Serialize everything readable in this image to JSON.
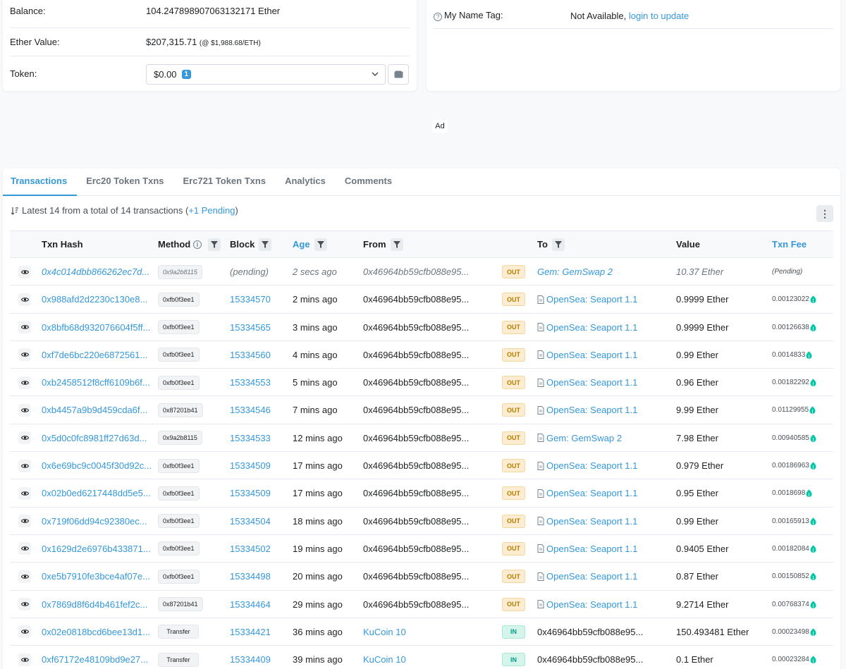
{
  "overview": {
    "balance_label": "Balance:",
    "balance_value": "104.247898907063132171 Ether",
    "ether_value_label": "Ether Value:",
    "ether_value": "$207,315.71",
    "ether_price": "(@ $1,988.68/ETH)",
    "token_label": "Token:",
    "token_value": "$0.00",
    "token_count": "1"
  },
  "more_info": {
    "name_tag_label": "My Name Tag:",
    "name_tag_value": "Not Available,",
    "name_tag_link": "login to update"
  },
  "ad_label": "Ad",
  "tabs": [
    {
      "label": "Transactions",
      "active": true
    },
    {
      "label": "Erc20 Token Txns",
      "active": false
    },
    {
      "label": "Erc721 Token Txns",
      "active": false
    },
    {
      "label": "Analytics",
      "active": false
    },
    {
      "label": "Comments",
      "active": false
    }
  ],
  "summary": {
    "text": "Latest 14 from a total of 14 transactions",
    "open_paren": "(",
    "pending_link": "+1 Pending",
    "close_paren": ")"
  },
  "columns": {
    "txn_hash": "Txn Hash",
    "method": "Method",
    "block": "Block",
    "age": "Age",
    "from": "From",
    "to": "To",
    "value": "Value",
    "txn_fee": "Txn Fee"
  },
  "transactions": [
    {
      "hash": "0x4c014dbb866262ec7d...",
      "method": "0x9a2b8115",
      "block": "(pending)",
      "age": "2 secs ago",
      "from": "0x46964bb59cfb088e95...",
      "direction": "OUT",
      "to": "Gem: GemSwap 2",
      "to_contract": false,
      "value": "10.37 Ether",
      "fee": "(Pending)",
      "pending": true
    },
    {
      "hash": "0x988afd2d2230c130e8...",
      "method": "0xfb0f3ee1",
      "block": "15334570",
      "age": "2 mins ago",
      "from": "0x46964bb59cfb088e95...",
      "direction": "OUT",
      "to": "OpenSea: Seaport 1.1",
      "to_contract": true,
      "value": "0.9999 Ether",
      "fee": "0.00123022",
      "pending": false
    },
    {
      "hash": "0x8bfb68d932076604f5ff...",
      "method": "0xfb0f3ee1",
      "block": "15334565",
      "age": "3 mins ago",
      "from": "0x46964bb59cfb088e95...",
      "direction": "OUT",
      "to": "OpenSea: Seaport 1.1",
      "to_contract": true,
      "value": "0.9999 Ether",
      "fee": "0.00126638",
      "pending": false
    },
    {
      "hash": "0xf7de6bc220e6872561...",
      "method": "0xfb0f3ee1",
      "block": "15334560",
      "age": "4 mins ago",
      "from": "0x46964bb59cfb088e95...",
      "direction": "OUT",
      "to": "OpenSea: Seaport 1.1",
      "to_contract": true,
      "value": "0.99 Ether",
      "fee": "0.0014833",
      "pending": false
    },
    {
      "hash": "0xb2458512f8cff6109b6f...",
      "method": "0xfb0f3ee1",
      "block": "15334553",
      "age": "5 mins ago",
      "from": "0x46964bb59cfb088e95...",
      "direction": "OUT",
      "to": "OpenSea: Seaport 1.1",
      "to_contract": true,
      "value": "0.96 Ether",
      "fee": "0.00182292",
      "pending": false
    },
    {
      "hash": "0xb4457a9b9d459cda6f...",
      "method": "0x87201b41",
      "block": "15334546",
      "age": "7 mins ago",
      "from": "0x46964bb59cfb088e95...",
      "direction": "OUT",
      "to": "OpenSea: Seaport 1.1",
      "to_contract": true,
      "value": "9.99 Ether",
      "fee": "0.01129955",
      "pending": false
    },
    {
      "hash": "0x5d0c0fc8981ff27d63d...",
      "method": "0x9a2b8115",
      "block": "15334533",
      "age": "12 mins ago",
      "from": "0x46964bb59cfb088e95...",
      "direction": "OUT",
      "to": "Gem: GemSwap 2",
      "to_contract": true,
      "value": "7.98 Ether",
      "fee": "0.00940585",
      "pending": false
    },
    {
      "hash": "0x6e69bc9c0045f30d92c...",
      "method": "0xfb0f3ee1",
      "block": "15334509",
      "age": "17 mins ago",
      "from": "0x46964bb59cfb088e95...",
      "direction": "OUT",
      "to": "OpenSea: Seaport 1.1",
      "to_contract": true,
      "value": "0.979 Ether",
      "fee": "0.00186963",
      "pending": false
    },
    {
      "hash": "0x02b0ed6217448dd5e5...",
      "method": "0xfb0f3ee1",
      "block": "15334509",
      "age": "17 mins ago",
      "from": "0x46964bb59cfb088e95...",
      "direction": "OUT",
      "to": "OpenSea: Seaport 1.1",
      "to_contract": true,
      "value": "0.95 Ether",
      "fee": "0.0018698",
      "pending": false
    },
    {
      "hash": "0x719f06dd94c92380ec...",
      "method": "0xfb0f3ee1",
      "block": "15334504",
      "age": "18 mins ago",
      "from": "0x46964bb59cfb088e95...",
      "direction": "OUT",
      "to": "OpenSea: Seaport 1.1",
      "to_contract": true,
      "value": "0.99 Ether",
      "fee": "0.00165913",
      "pending": false
    },
    {
      "hash": "0x1629d2e6976b433871...",
      "method": "0xfb0f3ee1",
      "block": "15334502",
      "age": "19 mins ago",
      "from": "0x46964bb59cfb088e95...",
      "direction": "OUT",
      "to": "OpenSea: Seaport 1.1",
      "to_contract": true,
      "value": "0.9405 Ether",
      "fee": "0.00182084",
      "pending": false
    },
    {
      "hash": "0xe5b7910fe3bce4af07e...",
      "method": "0xfb0f3ee1",
      "block": "15334498",
      "age": "20 mins ago",
      "from": "0x46964bb59cfb088e95...",
      "direction": "OUT",
      "to": "OpenSea: Seaport 1.1",
      "to_contract": true,
      "value": "0.87 Ether",
      "fee": "0.00150852",
      "pending": false
    },
    {
      "hash": "0x7869d8f6d4b461fef2c...",
      "method": "0x87201b41",
      "block": "15334464",
      "age": "29 mins ago",
      "from": "0x46964bb59cfb088e95...",
      "direction": "OUT",
      "to": "OpenSea: Seaport 1.1",
      "to_contract": true,
      "value": "9.2714 Ether",
      "fee": "0.00768374",
      "pending": false
    },
    {
      "hash": "0x02e0818bcd6bee13d1...",
      "method": "Transfer",
      "block": "15334421",
      "age": "36 mins ago",
      "from": "KuCoin 10",
      "from_link": true,
      "direction": "IN",
      "to": "0x46964bb59cfb088e95...",
      "to_contract": false,
      "to_plain": true,
      "value": "150.493481 Ether",
      "fee": "0.00023498",
      "pending": false
    },
    {
      "hash": "0xf67172e48109bd9e27...",
      "method": "Transfer",
      "block": "15334409",
      "age": "39 mins ago",
      "from": "KuCoin 10",
      "from_link": true,
      "direction": "IN",
      "to": "0x46964bb59cfb088e95...",
      "to_contract": false,
      "to_plain": true,
      "value": "0.1 Ether",
      "fee": "0.00023284",
      "pending": false
    }
  ],
  "colors": {
    "link": "#3498db",
    "out_badge": "#fcecd1",
    "in_badge": "#d4f4ec",
    "gas": "#00c9a7"
  }
}
